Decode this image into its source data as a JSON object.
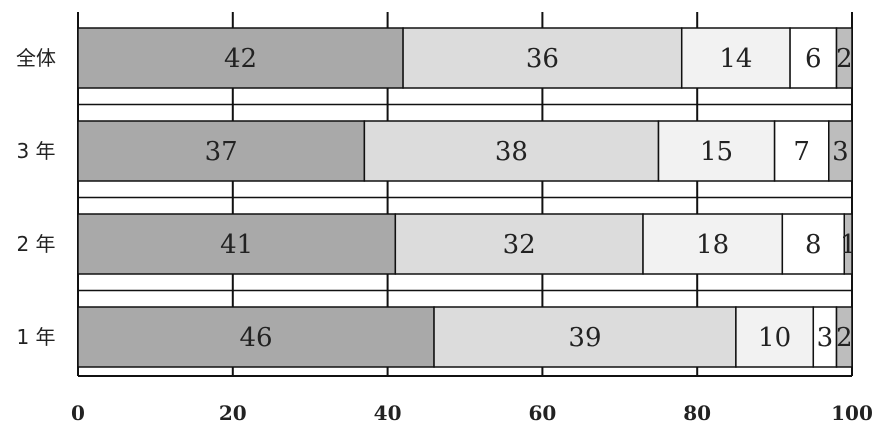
{
  "chart_data": {
    "type": "bar",
    "orientation": "horizontal",
    "stacked": true,
    "categories": [
      "全体",
      "3年",
      "2年",
      "1年"
    ],
    "category_labels": [
      "全体",
      "3 年",
      "2 年",
      "1 年"
    ],
    "series": [
      {
        "values": [
          42,
          37,
          41,
          46
        ],
        "color": "#a9a9a9"
      },
      {
        "values": [
          36,
          38,
          32,
          39
        ],
        "color": "#dcdcdc"
      },
      {
        "values": [
          14,
          15,
          18,
          10
        ],
        "color": "#f2f2f2"
      },
      {
        "values": [
          6,
          7,
          8,
          3
        ],
        "color": "#ffffff"
      },
      {
        "values": [
          2,
          3,
          1,
          2
        ],
        "color": "#bdbdbd"
      }
    ],
    "xlim": [
      0,
      100
    ],
    "xticks": [
      0,
      20,
      40,
      60,
      80,
      100
    ],
    "grid": true,
    "title": "",
    "xlabel": "",
    "ylabel": ""
  }
}
